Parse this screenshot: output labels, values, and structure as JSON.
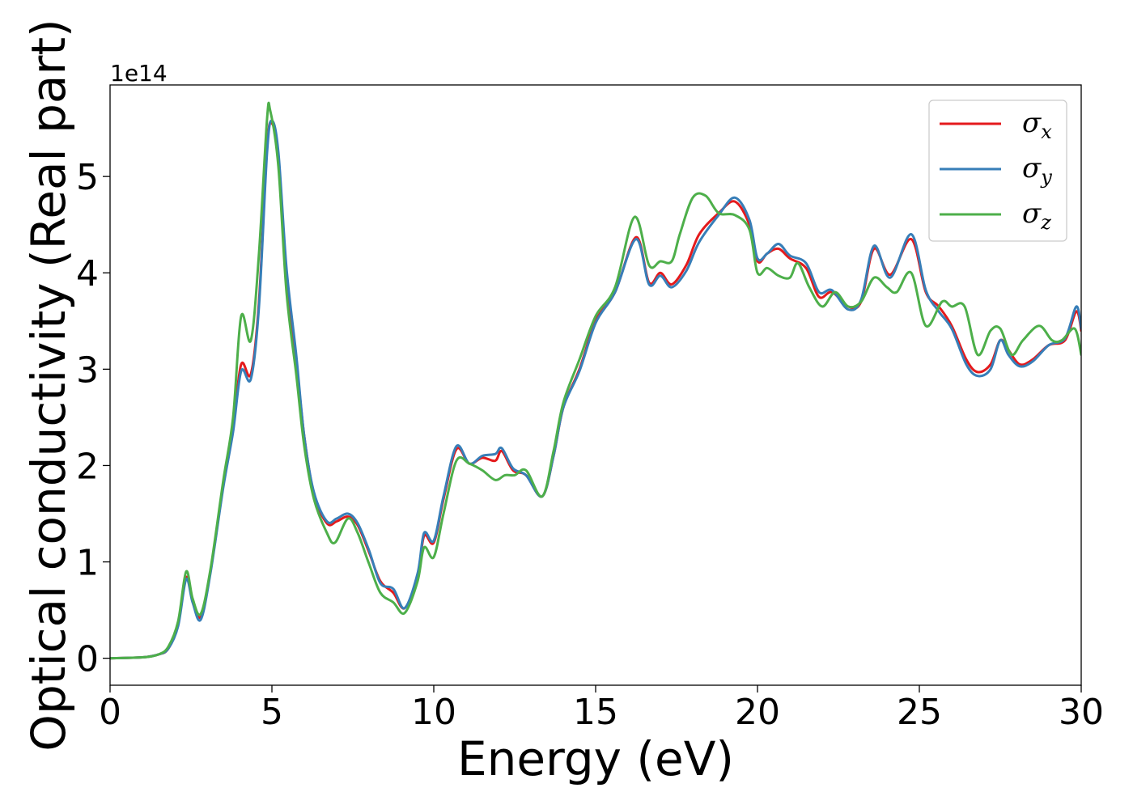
{
  "chart_data": {
    "type": "line",
    "title": "",
    "xlabel": "Energy (eV)",
    "ylabel": "Optical conductivity (Real part)",
    "y_offset_label": "1e14",
    "xlim": [
      0,
      30
    ],
    "ylim": [
      -0.28,
      5.95
    ],
    "y_scale_multiplier": 100000000000000.0,
    "xticks": [
      0,
      5,
      10,
      15,
      20,
      25,
      30
    ],
    "yticks": [
      0,
      1,
      2,
      3,
      4,
      5
    ],
    "grid": false,
    "legend_position": "top-right",
    "series": [
      {
        "name": "σx",
        "label_base": "σ",
        "label_sub": "x",
        "color": "#e41a1c",
        "points": [
          [
            0,
            0
          ],
          [
            1,
            0.01
          ],
          [
            1.5,
            0.04
          ],
          [
            1.8,
            0.1
          ],
          [
            2.1,
            0.35
          ],
          [
            2.35,
            0.84
          ],
          [
            2.55,
            0.6
          ],
          [
            2.8,
            0.43
          ],
          [
            3.1,
            0.9
          ],
          [
            3.5,
            1.8
          ],
          [
            3.8,
            2.4
          ],
          [
            4.05,
            3.05
          ],
          [
            4.35,
            2.95
          ],
          [
            4.6,
            3.7
          ],
          [
            4.85,
            5.3
          ],
          [
            5.0,
            5.55
          ],
          [
            5.2,
            5.2
          ],
          [
            5.45,
            4.0
          ],
          [
            5.75,
            3.1
          ],
          [
            6.0,
            2.3
          ],
          [
            6.3,
            1.7
          ],
          [
            6.7,
            1.4
          ],
          [
            7.0,
            1.42
          ],
          [
            7.35,
            1.47
          ],
          [
            7.65,
            1.38
          ],
          [
            8.0,
            1.1
          ],
          [
            8.35,
            0.8
          ],
          [
            8.75,
            0.68
          ],
          [
            9.1,
            0.52
          ],
          [
            9.5,
            0.85
          ],
          [
            9.7,
            1.27
          ],
          [
            10.0,
            1.2
          ],
          [
            10.3,
            1.65
          ],
          [
            10.7,
            2.17
          ],
          [
            11.1,
            2.02
          ],
          [
            11.5,
            2.08
          ],
          [
            11.9,
            2.05
          ],
          [
            12.1,
            2.15
          ],
          [
            12.45,
            1.95
          ],
          [
            12.85,
            1.9
          ],
          [
            13.35,
            1.68
          ],
          [
            13.7,
            2.1
          ],
          [
            14.0,
            2.6
          ],
          [
            14.5,
            3.0
          ],
          [
            15.0,
            3.5
          ],
          [
            15.6,
            3.8
          ],
          [
            16.25,
            4.37
          ],
          [
            16.65,
            3.9
          ],
          [
            17.0,
            4.0
          ],
          [
            17.35,
            3.88
          ],
          [
            17.8,
            4.08
          ],
          [
            18.2,
            4.4
          ],
          [
            18.8,
            4.62
          ],
          [
            19.3,
            4.74
          ],
          [
            19.75,
            4.5
          ],
          [
            20.0,
            4.12
          ],
          [
            20.3,
            4.2
          ],
          [
            20.65,
            4.25
          ],
          [
            21.0,
            4.15
          ],
          [
            21.5,
            4.05
          ],
          [
            21.9,
            3.75
          ],
          [
            22.3,
            3.8
          ],
          [
            22.8,
            3.65
          ],
          [
            23.2,
            3.7
          ],
          [
            23.6,
            4.25
          ],
          [
            24.1,
            3.98
          ],
          [
            24.75,
            4.35
          ],
          [
            25.2,
            3.8
          ],
          [
            25.6,
            3.65
          ],
          [
            26.0,
            3.45
          ],
          [
            26.45,
            3.1
          ],
          [
            26.8,
            2.97
          ],
          [
            27.2,
            3.05
          ],
          [
            27.5,
            3.3
          ],
          [
            27.75,
            3.2
          ],
          [
            28.1,
            3.05
          ],
          [
            28.5,
            3.1
          ],
          [
            29.0,
            3.25
          ],
          [
            29.5,
            3.3
          ],
          [
            29.85,
            3.6
          ],
          [
            30,
            3.4
          ]
        ]
      },
      {
        "name": "σy",
        "label_base": "σ",
        "label_sub": "y",
        "color": "#377eb8",
        "points": [
          [
            0,
            0
          ],
          [
            1,
            0.01
          ],
          [
            1.5,
            0.04
          ],
          [
            1.8,
            0.1
          ],
          [
            2.1,
            0.33
          ],
          [
            2.35,
            0.82
          ],
          [
            2.55,
            0.58
          ],
          [
            2.8,
            0.4
          ],
          [
            3.1,
            0.88
          ],
          [
            3.5,
            1.78
          ],
          [
            3.8,
            2.35
          ],
          [
            4.05,
            2.98
          ],
          [
            4.35,
            2.9
          ],
          [
            4.6,
            3.65
          ],
          [
            4.85,
            5.25
          ],
          [
            5.0,
            5.58
          ],
          [
            5.2,
            5.25
          ],
          [
            5.45,
            4.05
          ],
          [
            5.75,
            3.15
          ],
          [
            6.0,
            2.3
          ],
          [
            6.3,
            1.72
          ],
          [
            6.7,
            1.42
          ],
          [
            7.0,
            1.45
          ],
          [
            7.35,
            1.5
          ],
          [
            7.65,
            1.4
          ],
          [
            8.0,
            1.12
          ],
          [
            8.35,
            0.78
          ],
          [
            8.75,
            0.72
          ],
          [
            9.1,
            0.52
          ],
          [
            9.5,
            0.88
          ],
          [
            9.7,
            1.3
          ],
          [
            10.0,
            1.22
          ],
          [
            10.3,
            1.68
          ],
          [
            10.7,
            2.2
          ],
          [
            11.1,
            2.02
          ],
          [
            11.5,
            2.1
          ],
          [
            11.9,
            2.12
          ],
          [
            12.1,
            2.18
          ],
          [
            12.45,
            1.97
          ],
          [
            12.85,
            1.9
          ],
          [
            13.35,
            1.68
          ],
          [
            13.7,
            2.1
          ],
          [
            14.0,
            2.6
          ],
          [
            14.5,
            2.98
          ],
          [
            15.0,
            3.48
          ],
          [
            15.6,
            3.8
          ],
          [
            16.25,
            4.35
          ],
          [
            16.65,
            3.88
          ],
          [
            17.0,
            3.97
          ],
          [
            17.35,
            3.85
          ],
          [
            17.8,
            4.02
          ],
          [
            18.2,
            4.32
          ],
          [
            18.8,
            4.6
          ],
          [
            19.3,
            4.78
          ],
          [
            19.75,
            4.55
          ],
          [
            20.0,
            4.15
          ],
          [
            20.3,
            4.2
          ],
          [
            20.65,
            4.3
          ],
          [
            21.0,
            4.18
          ],
          [
            21.5,
            4.1
          ],
          [
            21.9,
            3.8
          ],
          [
            22.3,
            3.82
          ],
          [
            22.8,
            3.62
          ],
          [
            23.2,
            3.72
          ],
          [
            23.6,
            4.28
          ],
          [
            24.1,
            3.95
          ],
          [
            24.75,
            4.4
          ],
          [
            25.2,
            3.82
          ],
          [
            25.6,
            3.6
          ],
          [
            26.0,
            3.42
          ],
          [
            26.45,
            3.05
          ],
          [
            26.8,
            2.93
          ],
          [
            27.2,
            3.0
          ],
          [
            27.5,
            3.3
          ],
          [
            27.75,
            3.15
          ],
          [
            28.1,
            3.03
          ],
          [
            28.5,
            3.08
          ],
          [
            29.0,
            3.25
          ],
          [
            29.5,
            3.32
          ],
          [
            29.85,
            3.65
          ],
          [
            30,
            3.42
          ]
        ]
      },
      {
        "name": "σz",
        "label_base": "σ",
        "label_sub": "z",
        "color": "#4daf4a",
        "points": [
          [
            0,
            0
          ],
          [
            1,
            0.01
          ],
          [
            1.5,
            0.04
          ],
          [
            1.8,
            0.12
          ],
          [
            2.1,
            0.38
          ],
          [
            2.35,
            0.9
          ],
          [
            2.55,
            0.62
          ],
          [
            2.8,
            0.46
          ],
          [
            3.1,
            0.92
          ],
          [
            3.5,
            1.85
          ],
          [
            3.8,
            2.5
          ],
          [
            4.05,
            3.55
          ],
          [
            4.35,
            3.3
          ],
          [
            4.6,
            4.2
          ],
          [
            4.85,
            5.6
          ],
          [
            4.95,
            5.68
          ],
          [
            5.2,
            5.1
          ],
          [
            5.45,
            3.8
          ],
          [
            5.75,
            2.95
          ],
          [
            6.0,
            2.2
          ],
          [
            6.3,
            1.65
          ],
          [
            6.7,
            1.3
          ],
          [
            6.95,
            1.2
          ],
          [
            7.35,
            1.45
          ],
          [
            7.65,
            1.3
          ],
          [
            8.0,
            0.98
          ],
          [
            8.35,
            0.68
          ],
          [
            8.75,
            0.58
          ],
          [
            9.1,
            0.47
          ],
          [
            9.5,
            0.8
          ],
          [
            9.7,
            1.15
          ],
          [
            10.0,
            1.05
          ],
          [
            10.3,
            1.5
          ],
          [
            10.7,
            2.05
          ],
          [
            11.1,
            2.02
          ],
          [
            11.5,
            1.95
          ],
          [
            11.9,
            1.85
          ],
          [
            12.2,
            1.9
          ],
          [
            12.5,
            1.9
          ],
          [
            12.85,
            1.95
          ],
          [
            13.35,
            1.68
          ],
          [
            13.7,
            2.15
          ],
          [
            14.0,
            2.65
          ],
          [
            14.5,
            3.1
          ],
          [
            15.0,
            3.55
          ],
          [
            15.6,
            3.85
          ],
          [
            16.2,
            4.58
          ],
          [
            16.65,
            4.08
          ],
          [
            17.0,
            4.12
          ],
          [
            17.35,
            4.12
          ],
          [
            17.6,
            4.4
          ],
          [
            18.0,
            4.78
          ],
          [
            18.4,
            4.8
          ],
          [
            18.8,
            4.62
          ],
          [
            19.3,
            4.6
          ],
          [
            19.75,
            4.45
          ],
          [
            20.0,
            4.0
          ],
          [
            20.3,
            4.05
          ],
          [
            20.65,
            3.97
          ],
          [
            21.0,
            3.95
          ],
          [
            21.25,
            4.1
          ],
          [
            21.6,
            3.85
          ],
          [
            22.0,
            3.65
          ],
          [
            22.4,
            3.8
          ],
          [
            22.8,
            3.65
          ],
          [
            23.2,
            3.7
          ],
          [
            23.6,
            3.95
          ],
          [
            24.0,
            3.85
          ],
          [
            24.3,
            3.8
          ],
          [
            24.75,
            4.0
          ],
          [
            25.2,
            3.45
          ],
          [
            25.7,
            3.7
          ],
          [
            26.0,
            3.65
          ],
          [
            26.4,
            3.65
          ],
          [
            26.8,
            3.15
          ],
          [
            27.2,
            3.4
          ],
          [
            27.5,
            3.42
          ],
          [
            27.85,
            3.15
          ],
          [
            28.2,
            3.3
          ],
          [
            28.7,
            3.45
          ],
          [
            29.1,
            3.3
          ],
          [
            29.4,
            3.3
          ],
          [
            29.8,
            3.42
          ],
          [
            30,
            3.15
          ]
        ]
      }
    ]
  }
}
